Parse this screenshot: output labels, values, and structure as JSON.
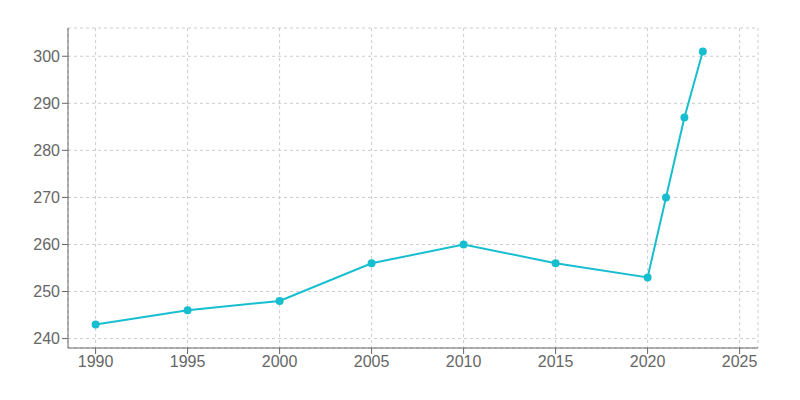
{
  "chart_data": {
    "type": "line",
    "x": [
      1990,
      1995,
      2000,
      2005,
      2010,
      2015,
      2020,
      2021,
      2022,
      2023
    ],
    "values": [
      243,
      246,
      248,
      256,
      260,
      256,
      253,
      270,
      287,
      301
    ],
    "color": "#17BECF",
    "marker": "o",
    "xlim": [
      1988.5,
      2026
    ],
    "ylim": [
      238,
      306
    ],
    "xticks": [
      1990,
      1995,
      2000,
      2005,
      2010,
      2015,
      2020,
      2025
    ],
    "yticks": [
      240,
      250,
      260,
      270,
      280,
      290,
      300
    ],
    "grid": true
  }
}
